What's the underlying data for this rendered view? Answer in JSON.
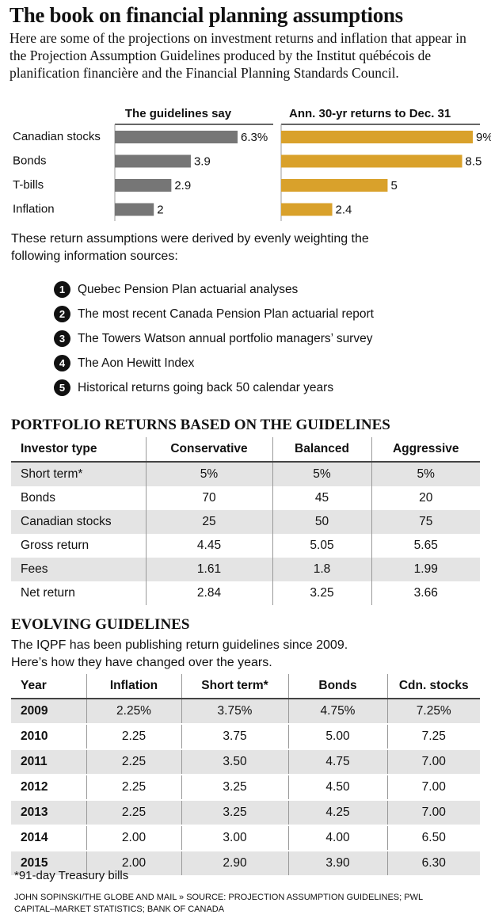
{
  "header": {
    "title": "The book on financial planning assumptions",
    "intro": "Here are some of the projections on investment returns and inflation that appear in the Projection Assumption Guidelines produced by the Institut québécois de planification financière and the Financial Planning Standards Council."
  },
  "chart_data": {
    "type": "bar",
    "categories": [
      "Canadian stocks",
      "Bonds",
      "T-bills",
      "Inflation"
    ],
    "series": [
      {
        "name": "The guidelines say",
        "color": "#767676",
        "values": [
          6.3,
          3.9,
          2.9,
          2
        ],
        "value_labels": [
          "6.3%",
          "3.9",
          "2.9",
          "2"
        ]
      },
      {
        "name": "Ann. 30-yr returns to Dec. 31",
        "color": "#d9a12b",
        "values": [
          9,
          8.5,
          5,
          2.4
        ],
        "value_labels": [
          "9%",
          "8.5",
          "5",
          "2.4"
        ]
      }
    ]
  },
  "sources": {
    "intro": "These return assumptions were derived by evenly weighting the following information sources:",
    "items": [
      {
        "number": "1",
        "text": "Quebec Pension Plan actuarial analyses"
      },
      {
        "number": "2",
        "text": "The most recent Canada Pension Plan actuarial report"
      },
      {
        "number": "3",
        "text": "The Towers Watson annual portfolio managers’ survey"
      },
      {
        "number": "4",
        "text": "The Aon Hewitt Index"
      },
      {
        "number": "5",
        "text": "Historical returns going back 50 calendar years"
      }
    ]
  },
  "portfolio": {
    "title": "PORTFOLIO RETURNS BASED ON THE GUIDELINES",
    "header": [
      "Investor type",
      "Conservative",
      "Balanced",
      "Aggressive"
    ],
    "rows": [
      [
        "Short term*",
        "5%",
        "5%",
        "5%"
      ],
      [
        "Bonds",
        "70",
        "45",
        "20"
      ],
      [
        "Canadian stocks",
        "25",
        "50",
        "75"
      ],
      [
        "Gross return",
        "4.45",
        "5.05",
        "5.65"
      ],
      [
        "Fees",
        "1.61",
        "1.8",
        "1.99"
      ],
      [
        "Net return",
        "2.84",
        "3.25",
        "3.66"
      ]
    ]
  },
  "evolving": {
    "title": "EVOLVING GUIDELINES",
    "intro": "The IQPF has been publishing return guidelines since 2009. Here’s how they have changed over the years.",
    "header": [
      "Year",
      "Inflation",
      "Short term*",
      "Bonds",
      "Cdn. stocks"
    ],
    "rows": [
      [
        "2009",
        "2.25%",
        "3.75%",
        "4.75%",
        "7.25%"
      ],
      [
        "2010",
        "2.25",
        "3.75",
        "5.00",
        "7.25"
      ],
      [
        "2011",
        "2.25",
        "3.50",
        "4.75",
        "7.00"
      ],
      [
        "2012",
        "2.25",
        "3.25",
        "4.50",
        "7.00"
      ],
      [
        "2013",
        "2.25",
        "3.25",
        "4.25",
        "7.00"
      ],
      [
        "2014",
        "2.00",
        "3.00",
        "4.00",
        "6.50"
      ],
      [
        "2015",
        "2.00",
        "2.90",
        "3.90",
        "6.30"
      ]
    ]
  },
  "footnote": "*91-day Treasury bills",
  "credit": "JOHN SOPINSKI/THE GLOBE AND MAIL » SOURCE: PROJECTION ASSUMPTION GUIDELINES; PWL CAPITAL–MARKET STATISTICS; BANK OF CANADA"
}
